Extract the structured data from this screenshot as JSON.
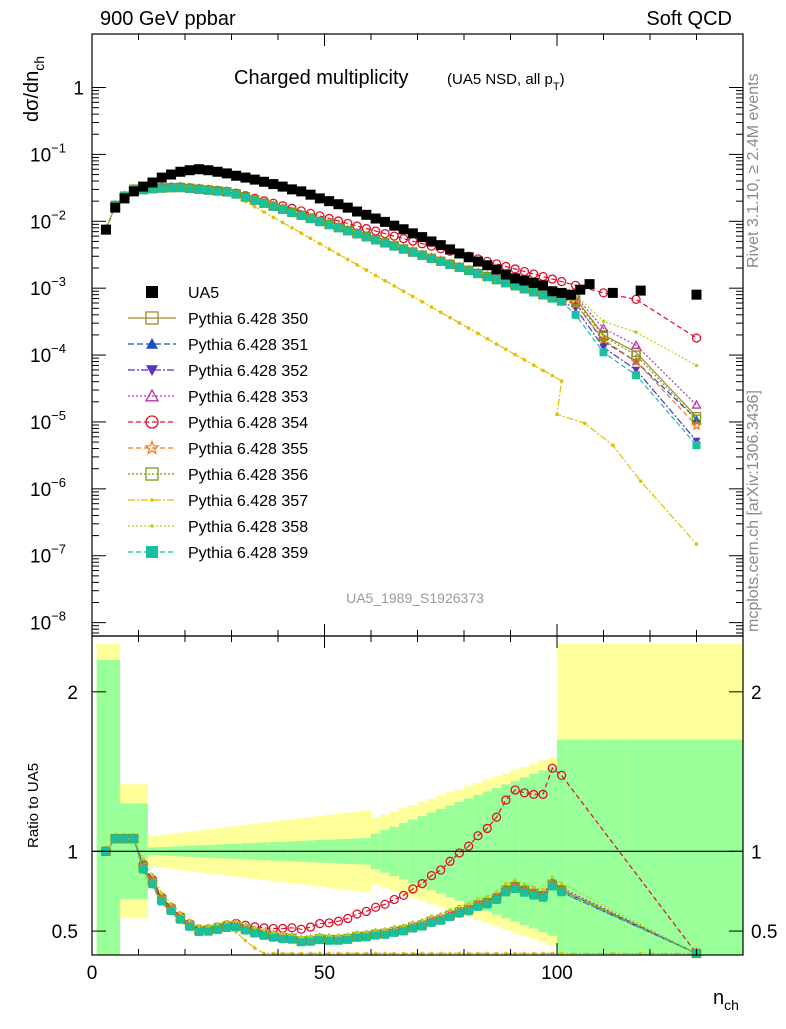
{
  "header": {
    "left": "900 GeV ppbar",
    "right": "Soft QCD",
    "side_top": "Rivet 3.1.10, ≥ 2.4M events",
    "side_bottom": "mcplots.cern.ch [arXiv:1306.3436]"
  },
  "chart_data": {
    "type": "scatter",
    "title": "Charged multiplicity",
    "subtitle": "(UA5 NSD, all p",
    "subtitle_sub": "T",
    "subtitle_end": ")",
    "watermark": "UA5_1989_S1926373",
    "xlabel": "n",
    "xlabel_sub": "ch",
    "ylabel_main": "dσ/dn",
    "ylabel_main_sub": "ch",
    "ylabel_ratio": "Ratio to UA5",
    "xlim": [
      0,
      140
    ],
    "ylim_main_log10": [
      -8.2,
      0.8
    ],
    "ylim_ratio": [
      0.35,
      2.35
    ],
    "x_ticks": [
      0,
      50,
      100
    ],
    "x_tick_labels": [
      "0",
      "50",
      "100"
    ],
    "y_main_ticks": [
      {
        "exp": 0,
        "label": "1"
      },
      {
        "exp": -1,
        "label": "10",
        "sup": "−1"
      },
      {
        "exp": -2,
        "label": "10",
        "sup": "−2"
      },
      {
        "exp": -3,
        "label": "10",
        "sup": "−3"
      },
      {
        "exp": -4,
        "label": "10",
        "sup": "−4"
      },
      {
        "exp": -5,
        "label": "10",
        "sup": "−5"
      },
      {
        "exp": -6,
        "label": "10",
        "sup": "−6"
      },
      {
        "exp": -7,
        "label": "10",
        "sup": "−7"
      },
      {
        "exp": -8,
        "label": "10",
        "sup": "−8"
      }
    ],
    "y_ratio_ticks": [
      {
        "v": 0.5,
        "label": "0.5"
      },
      {
        "v": 1,
        "label": "1"
      },
      {
        "v": 2,
        "label": "2"
      }
    ],
    "data_series": {
      "name": "UA5",
      "color": "#000000",
      "marker": "filled-square",
      "x": [
        3,
        5,
        7,
        9,
        11,
        13,
        15,
        17,
        19,
        21,
        23,
        25,
        27,
        29,
        31,
        33,
        35,
        37,
        39,
        41,
        43,
        45,
        47,
        49,
        51,
        53,
        55,
        57,
        59,
        61,
        63,
        65,
        67,
        69,
        71,
        73,
        75,
        77,
        79,
        81,
        83,
        85,
        87,
        89,
        91,
        93,
        95,
        97,
        99,
        101,
        103,
        105,
        107,
        112,
        118,
        130
      ],
      "y": [
        0.0075,
        0.016,
        0.022,
        0.028,
        0.033,
        0.038,
        0.045,
        0.05,
        0.055,
        0.058,
        0.06,
        0.058,
        0.055,
        0.052,
        0.048,
        0.045,
        0.042,
        0.039,
        0.036,
        0.033,
        0.03,
        0.028,
        0.025,
        0.022,
        0.02,
        0.018,
        0.016,
        0.014,
        0.0125,
        0.011,
        0.0098,
        0.0086,
        0.0076,
        0.0066,
        0.0058,
        0.005,
        0.0044,
        0.0038,
        0.0033,
        0.0029,
        0.0025,
        0.0022,
        0.0019,
        0.0016,
        0.0014,
        0.0013,
        0.0012,
        0.0011,
        0.0009,
        0.00085,
        0.0008,
        0.00095,
        0.00115,
        0.00085,
        0.00092,
        0.0008
      ]
    },
    "mc_series": [
      {
        "name": "Pythia 6.428 350",
        "color": "#a08c28",
        "marker": "open-square",
        "dash": "",
        "tail": [
          [
            104,
            0.0007
          ],
          [
            110,
            0.0002
          ],
          [
            117,
            0.00011
          ],
          [
            130,
            1.2e-05
          ]
        ]
      },
      {
        "name": "Pythia 6.428 351",
        "color": "#1f4fbf",
        "marker": "filled-triangle",
        "dash": "6 3",
        "tail": [
          [
            104,
            0.0006
          ],
          [
            110,
            0.00016
          ],
          [
            117,
            8e-05
          ],
          [
            130,
            1.1e-05
          ]
        ]
      },
      {
        "name": "Pythia 6.428 352",
        "color": "#5a2fc4",
        "marker": "filled-triangle-down",
        "dash": "7 2 2 2",
        "tail": [
          [
            104,
            0.0005
          ],
          [
            110,
            0.00013
          ],
          [
            117,
            6e-05
          ],
          [
            130,
            5.2e-06
          ]
        ]
      },
      {
        "name": "Pythia 6.428 353",
        "color": "#c030a8",
        "marker": "open-triangle",
        "dash": "2 2",
        "tail": [
          [
            104,
            0.00075
          ],
          [
            110,
            0.00025
          ],
          [
            117,
            0.00014
          ],
          [
            130,
            1.8e-05
          ]
        ]
      },
      {
        "name": "Pythia 6.428 354",
        "color": "#e0102a",
        "marker": "open-circle",
        "dash": "5 3",
        "tail": [
          [
            104,
            0.0011
          ],
          [
            110,
            0.00085
          ],
          [
            117,
            0.00068
          ],
          [
            130,
            0.00018
          ]
        ]
      },
      {
        "name": "Pythia 6.428 355",
        "color": "#f07820",
        "marker": "open-star",
        "dash": "5 3",
        "tail": [
          [
            104,
            0.00058
          ],
          [
            110,
            0.00017
          ],
          [
            117,
            8e-05
          ],
          [
            130,
            8.8e-06
          ]
        ]
      },
      {
        "name": "Pythia 6.428 356",
        "color": "#7a9a14",
        "marker": "open-square",
        "dash": "2 2",
        "tail": [
          [
            104,
            0.00065
          ],
          [
            110,
            0.00019
          ],
          [
            117,
            0.0001
          ],
          [
            130,
            1.1e-05
          ]
        ]
      },
      {
        "name": "Pythia 6.428 357",
        "color": "#e0c000",
        "marker": "small-dot",
        "dash": "7 2 2 2",
        "tail": [
          [
            100,
            1.3e-05
          ],
          [
            106,
            9.5e-06
          ],
          [
            112,
            4.5e-06
          ],
          [
            118,
            1.3e-06
          ],
          [
            130,
            1.5e-07
          ]
        ]
      },
      {
        "name": "Pythia 6.428 358",
        "color": "#b8d020",
        "marker": "small-dot",
        "dash": "2 2",
        "tail": [
          [
            104,
            0.0008
          ],
          [
            110,
            0.00032
          ],
          [
            117,
            0.00022
          ],
          [
            130,
            7e-05
          ]
        ]
      },
      {
        "name": "Pythia 6.428 359",
        "color": "#18c0a0",
        "marker": "filled-square",
        "dash": "5 3",
        "tail": [
          [
            104,
            0.0004
          ],
          [
            110,
            0.00011
          ],
          [
            117,
            5e-05
          ],
          [
            130,
            4.5e-06
          ]
        ]
      }
    ]
  }
}
